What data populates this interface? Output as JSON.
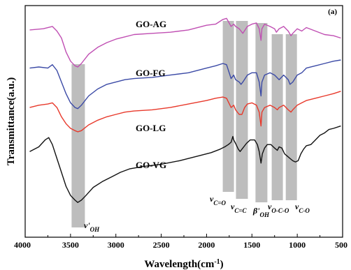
{
  "chart_data": {
    "type": "line",
    "panel_label": "(a)",
    "xlabel": "Wavelength(cm",
    "xlabel_sup": "-1",
    "xlabel_end": ")",
    "ylabel": "Transmittance(a.u.)",
    "xlim": [
      4000,
      500
    ],
    "xticks": [
      4000,
      3500,
      3000,
      2500,
      2000,
      1500,
      1000,
      500
    ],
    "xtick_labels": [
      "4000",
      "3500",
      "3000",
      "2500",
      "2000",
      "1500",
      "1000",
      "500"
    ],
    "ylim": [
      0,
      100
    ],
    "y_ticks_shown": false,
    "grid": false,
    "series": [
      {
        "name": "GO-AG",
        "color": "#c04fb3",
        "points": [
          [
            3950,
            89.5
          ],
          [
            3800,
            90
          ],
          [
            3700,
            91
          ],
          [
            3650,
            89
          ],
          [
            3600,
            86
          ],
          [
            3550,
            80
          ],
          [
            3500,
            76
          ],
          [
            3450,
            74
          ],
          [
            3420,
            73.5
          ],
          [
            3380,
            75
          ],
          [
            3300,
            79
          ],
          [
            3200,
            82
          ],
          [
            3100,
            84
          ],
          [
            3000,
            85.5
          ],
          [
            2900,
            86.5
          ],
          [
            2800,
            87.5
          ],
          [
            2600,
            88
          ],
          [
            2400,
            88.5
          ],
          [
            2200,
            89.5
          ],
          [
            2000,
            91.5
          ],
          [
            1900,
            92
          ],
          [
            1820,
            94
          ],
          [
            1780,
            94.5
          ],
          [
            1730,
            91
          ],
          [
            1700,
            92
          ],
          [
            1680,
            91
          ],
          [
            1640,
            90
          ],
          [
            1600,
            88
          ],
          [
            1550,
            91
          ],
          [
            1500,
            92
          ],
          [
            1450,
            92.5
          ],
          [
            1420,
            90
          ],
          [
            1400,
            85
          ],
          [
            1390,
            90
          ],
          [
            1360,
            92
          ],
          [
            1300,
            91
          ],
          [
            1250,
            90
          ],
          [
            1230,
            88.5
          ],
          [
            1200,
            90
          ],
          [
            1150,
            91
          ],
          [
            1100,
            89
          ],
          [
            1070,
            87
          ],
          [
            1050,
            88
          ],
          [
            1000,
            90
          ],
          [
            950,
            89
          ],
          [
            900,
            90.5
          ],
          [
            800,
            89
          ],
          [
            700,
            87.5
          ],
          [
            600,
            87
          ],
          [
            520,
            86
          ]
        ]
      },
      {
        "name": "GO-FG",
        "color": "#3b4aa6",
        "points": [
          [
            3950,
            73
          ],
          [
            3850,
            73.5
          ],
          [
            3750,
            73
          ],
          [
            3700,
            74.5
          ],
          [
            3650,
            72
          ],
          [
            3600,
            67
          ],
          [
            3550,
            62
          ],
          [
            3500,
            58
          ],
          [
            3450,
            56
          ],
          [
            3420,
            55.5
          ],
          [
            3380,
            57
          ],
          [
            3300,
            61
          ],
          [
            3200,
            64
          ],
          [
            3100,
            66
          ],
          [
            3000,
            67
          ],
          [
            2900,
            68
          ],
          [
            2800,
            68.5
          ],
          [
            2600,
            69
          ],
          [
            2400,
            70
          ],
          [
            2200,
            71
          ],
          [
            2000,
            73
          ],
          [
            1900,
            74
          ],
          [
            1820,
            75
          ],
          [
            1780,
            74.5
          ],
          [
            1730,
            68.5
          ],
          [
            1700,
            70
          ],
          [
            1680,
            68
          ],
          [
            1640,
            67
          ],
          [
            1620,
            66
          ],
          [
            1600,
            67
          ],
          [
            1550,
            70
          ],
          [
            1500,
            71
          ],
          [
            1450,
            71
          ],
          [
            1420,
            67
          ],
          [
            1400,
            61
          ],
          [
            1390,
            67
          ],
          [
            1360,
            70
          ],
          [
            1300,
            71
          ],
          [
            1250,
            70
          ],
          [
            1200,
            68
          ],
          [
            1150,
            70
          ],
          [
            1100,
            68
          ],
          [
            1080,
            66
          ],
          [
            1050,
            67
          ],
          [
            1000,
            70
          ],
          [
            950,
            71
          ],
          [
            900,
            73
          ],
          [
            800,
            74
          ],
          [
            700,
            75
          ],
          [
            600,
            76
          ],
          [
            520,
            76.5
          ]
        ]
      },
      {
        "name": "GO-LG",
        "color": "#e8392b",
        "points": [
          [
            3950,
            56
          ],
          [
            3850,
            57
          ],
          [
            3750,
            57.5
          ],
          [
            3700,
            58
          ],
          [
            3650,
            56
          ],
          [
            3600,
            52
          ],
          [
            3550,
            49
          ],
          [
            3500,
            47
          ],
          [
            3450,
            46
          ],
          [
            3420,
            45.5
          ],
          [
            3380,
            46
          ],
          [
            3300,
            48.5
          ],
          [
            3200,
            50.5
          ],
          [
            3100,
            52
          ],
          [
            3000,
            53
          ],
          [
            2900,
            54
          ],
          [
            2800,
            54.5
          ],
          [
            2600,
            55
          ],
          [
            2400,
            56
          ],
          [
            2200,
            57.5
          ],
          [
            2000,
            59
          ],
          [
            1900,
            60
          ],
          [
            1820,
            60.5
          ],
          [
            1780,
            60
          ],
          [
            1730,
            56
          ],
          [
            1700,
            57
          ],
          [
            1680,
            55
          ],
          [
            1640,
            53
          ],
          [
            1610,
            53
          ],
          [
            1580,
            56
          ],
          [
            1550,
            57.5
          ],
          [
            1500,
            58
          ],
          [
            1450,
            57
          ],
          [
            1420,
            54
          ],
          [
            1400,
            48
          ],
          [
            1390,
            54
          ],
          [
            1360,
            56
          ],
          [
            1300,
            57
          ],
          [
            1250,
            56
          ],
          [
            1220,
            55
          ],
          [
            1200,
            56
          ],
          [
            1150,
            57
          ],
          [
            1100,
            55
          ],
          [
            1070,
            54
          ],
          [
            1050,
            55
          ],
          [
            1000,
            57
          ],
          [
            950,
            58
          ],
          [
            900,
            59
          ],
          [
            800,
            60
          ],
          [
            700,
            61
          ],
          [
            600,
            62
          ],
          [
            520,
            63
          ]
        ]
      },
      {
        "name": "GO-VG",
        "color": "#111111",
        "points": [
          [
            3950,
            37
          ],
          [
            3850,
            39
          ],
          [
            3780,
            42
          ],
          [
            3740,
            43
          ],
          [
            3700,
            40
          ],
          [
            3650,
            34
          ],
          [
            3600,
            28
          ],
          [
            3550,
            22
          ],
          [
            3500,
            18
          ],
          [
            3450,
            16
          ],
          [
            3420,
            15
          ],
          [
            3380,
            16
          ],
          [
            3330,
            18
          ],
          [
            3250,
            21.5
          ],
          [
            3150,
            24
          ],
          [
            3050,
            26
          ],
          [
            2950,
            28
          ],
          [
            2850,
            29.5
          ],
          [
            2700,
            30.5
          ],
          [
            2500,
            31.5
          ],
          [
            2300,
            33
          ],
          [
            2100,
            35
          ],
          [
            1950,
            36.5
          ],
          [
            1850,
            38
          ],
          [
            1800,
            39
          ],
          [
            1760,
            40
          ],
          [
            1730,
            41
          ],
          [
            1710,
            43.5
          ],
          [
            1700,
            42
          ],
          [
            1680,
            40.5
          ],
          [
            1650,
            38
          ],
          [
            1630,
            37
          ],
          [
            1600,
            38.5
          ],
          [
            1560,
            40.5
          ],
          [
            1520,
            42
          ],
          [
            1470,
            42
          ],
          [
            1440,
            40
          ],
          [
            1420,
            37
          ],
          [
            1400,
            32
          ],
          [
            1385,
            36
          ],
          [
            1360,
            38.5
          ],
          [
            1330,
            40
          ],
          [
            1290,
            40
          ],
          [
            1250,
            38.5
          ],
          [
            1220,
            37.5
          ],
          [
            1200,
            39
          ],
          [
            1170,
            38.5
          ],
          [
            1140,
            36
          ],
          [
            1110,
            35
          ],
          [
            1080,
            34
          ],
          [
            1050,
            33
          ],
          [
            1020,
            32.5
          ],
          [
            990,
            33
          ],
          [
            960,
            36
          ],
          [
            930,
            38
          ],
          [
            900,
            39.5
          ],
          [
            850,
            40
          ],
          [
            800,
            42
          ],
          [
            750,
            44
          ],
          [
            700,
            45
          ],
          [
            650,
            46.5
          ],
          [
            600,
            47
          ],
          [
            520,
            48
          ]
        ]
      }
    ],
    "bands": [
      {
        "label": "ν'OH",
        "center": 3415
      },
      {
        "label": "νC=O",
        "center": 1760
      },
      {
        "label": "νC=C",
        "center": 1610
      },
      {
        "label": "β'OH",
        "center": 1395
      },
      {
        "label": "νO-C-O",
        "center": 1220
      },
      {
        "label": "νC-O",
        "center": 1065
      }
    ],
    "annotations": [
      {
        "id": "oh-stretch",
        "sym": "ν'",
        "sub": "OH"
      },
      {
        "id": "co",
        "sym": "ν",
        "sub": "C=O"
      },
      {
        "id": "cc",
        "sym": "ν",
        "sub": "C=C"
      },
      {
        "id": "oh-bend",
        "sym": "β'",
        "sub": "OH"
      },
      {
        "id": "oco",
        "sym": "ν",
        "sub": "O-C-O"
      },
      {
        "id": "c-o",
        "sym": "ν",
        "sub": "C-O"
      }
    ]
  }
}
